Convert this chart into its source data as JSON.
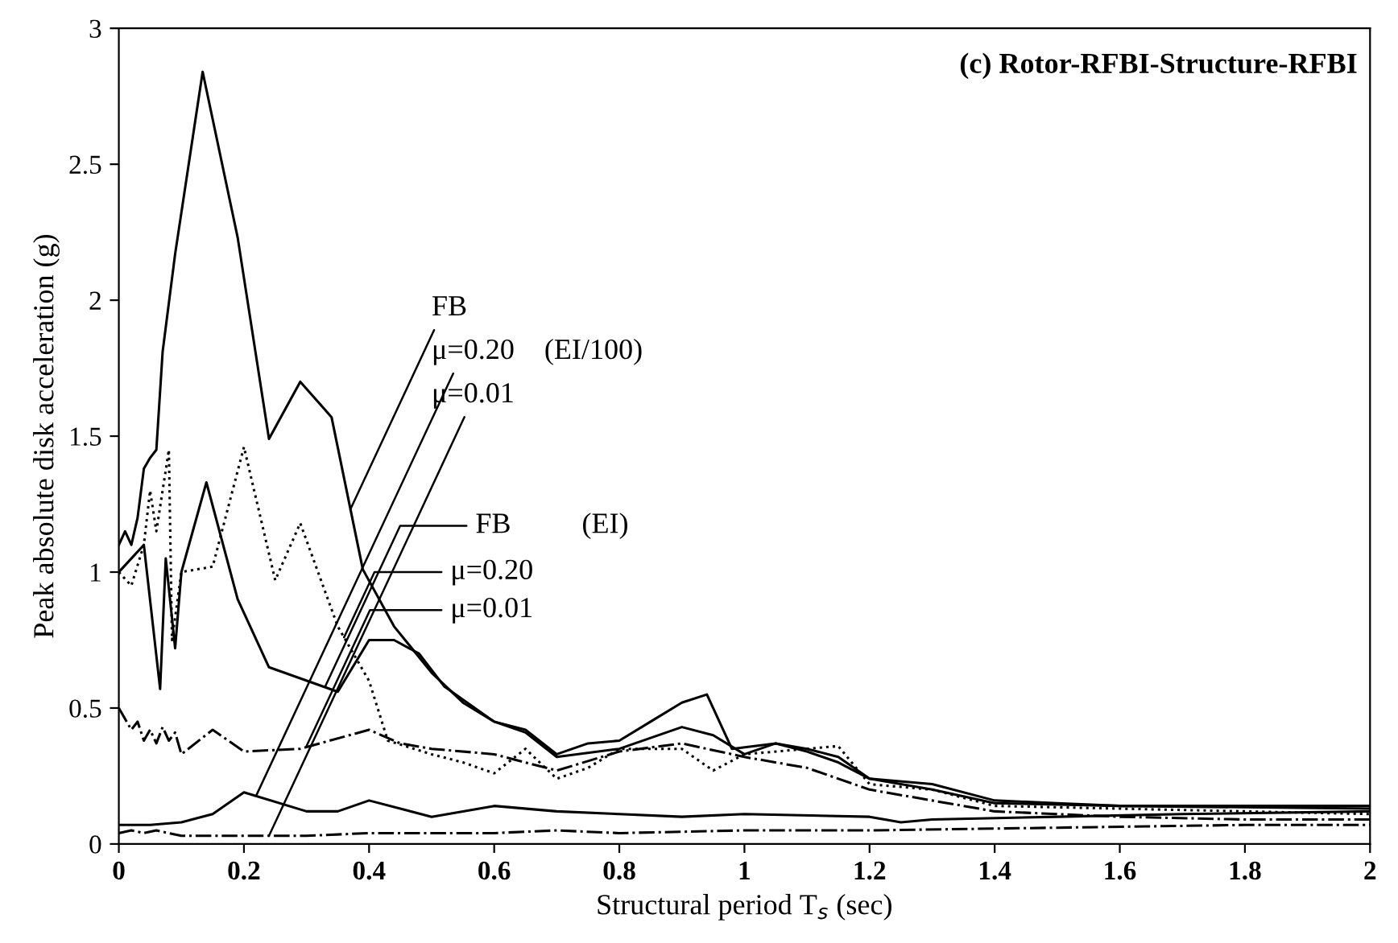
{
  "chart_data": {
    "type": "line",
    "title": "(c) Rotor-RFBI-Structure-RFBI",
    "xlabel": "Structural period T$_{s}$ (sec)",
    "ylabel": "Peak absolute disk acceleration (g)",
    "annotations": [
      {
        "text": "FB",
        "x": 0.37,
        "y": 1.23
      },
      {
        "text": "μ=0.20",
        "x": 0.22,
        "y": 0.18
      },
      {
        "text": "μ=0.01",
        "x": 0.24,
        "y": 0.03
      },
      "(EI/100)",
      {
        "text": "FB",
        "x": 0.33,
        "y": 0.58
      },
      {
        "text": "μ=0.20",
        "x": 0.36,
        "y": 0.76
      },
      {
        "text": "μ=0.01",
        "x": 0.3,
        "y": 0.36
      },
      "(EI)"
    ],
    "xlim": [
      0,
      2
    ],
    "ylim": [
      0,
      3
    ],
    "xticks": [
      0,
      0.2,
      0.4,
      0.6,
      0.8,
      1,
      1.2,
      1.4,
      1.6,
      1.8,
      2
    ],
    "yticks": [
      0,
      0.5,
      1,
      1.5,
      2,
      2.5,
      3
    ],
    "grid": false,
    "marker": "none",
    "series": [
      {
        "color": "#000000",
        "line_style": "solid",
        "x": [
          0,
          0.01,
          0.02,
          0.03,
          0.04,
          0.05,
          0.06,
          0.07,
          0.09,
          0.134,
          0.19,
          0.24,
          0.29,
          0.34,
          0.39,
          0.44,
          0.5,
          0.55,
          0.6,
          0.65,
          0.7,
          0.75,
          0.8,
          0.85,
          0.9,
          0.94,
          0.98,
          1.05,
          1.1,
          1.15,
          1.2,
          1.3,
          1.4,
          1.5,
          1.6,
          1.8,
          2.0
        ],
        "values": [
          1.1,
          1.15,
          1.1,
          1.2,
          1.38,
          1.42,
          1.45,
          1.81,
          2.17,
          2.84,
          2.23,
          1.49,
          1.7,
          1.57,
          1.01,
          0.8,
          0.63,
          0.52,
          0.45,
          0.42,
          0.33,
          0.37,
          0.38,
          0.45,
          0.52,
          0.55,
          0.35,
          0.37,
          0.35,
          0.32,
          0.24,
          0.22,
          0.16,
          0.15,
          0.14,
          0.14,
          0.14
        ]
      },
      {
        "color": "#000000",
        "line_style": "solid",
        "x": [
          0,
          0.05,
          0.1,
          0.15,
          0.2,
          0.3,
          0.35,
          0.4,
          0.5,
          0.6,
          0.7,
          0.8,
          0.9,
          1.0,
          1.2,
          1.25,
          1.3,
          1.5,
          1.7,
          2.0
        ],
        "values": [
          0.07,
          0.07,
          0.08,
          0.11,
          0.19,
          0.12,
          0.12,
          0.16,
          0.1,
          0.14,
          0.12,
          0.11,
          0.1,
          0.11,
          0.1,
          0.08,
          0.09,
          0.1,
          0.11,
          0.12
        ]
      },
      {
        "color": "#000000",
        "line_style": "dashdot",
        "x": [
          0,
          0.02,
          0.04,
          0.06,
          0.1,
          0.3,
          0.4,
          0.6,
          0.7,
          0.8,
          1.0,
          1.2,
          1.5,
          1.8,
          2.0
        ],
        "values": [
          0.04,
          0.05,
          0.04,
          0.05,
          0.03,
          0.03,
          0.04,
          0.04,
          0.05,
          0.04,
          0.05,
          0.05,
          0.06,
          0.07,
          0.07
        ]
      },
      {
        "color": "#000000",
        "line_style": "solid",
        "x": [
          0,
          0.02,
          0.04,
          0.066,
          0.075,
          0.09,
          0.1,
          0.14,
          0.19,
          0.24,
          0.35,
          0.4,
          0.44,
          0.48,
          0.52,
          0.6,
          0.65,
          0.7,
          0.8,
          0.9,
          0.95,
          1.0,
          1.05,
          1.1,
          1.15,
          1.2,
          1.3,
          1.4,
          1.6,
          2.0
        ],
        "values": [
          1.0,
          1.05,
          1.1,
          0.57,
          1.05,
          0.72,
          1.0,
          1.33,
          0.9,
          0.65,
          0.56,
          0.75,
          0.75,
          0.7,
          0.58,
          0.45,
          0.41,
          0.32,
          0.35,
          0.43,
          0.4,
          0.33,
          0.37,
          0.34,
          0.3,
          0.24,
          0.2,
          0.15,
          0.14,
          0.13
        ]
      },
      {
        "color": "#000000",
        "line_style": "dotted",
        "x": [
          0,
          0.02,
          0.04,
          0.05,
          0.06,
          0.08,
          0.085,
          0.1,
          0.15,
          0.2,
          0.25,
          0.29,
          0.35,
          0.4,
          0.43,
          0.5,
          0.55,
          0.6,
          0.65,
          0.7,
          0.75,
          0.8,
          0.9,
          0.95,
          1.0,
          1.1,
          1.15,
          1.2,
          1.3,
          1.4,
          2.0
        ],
        "values": [
          1.0,
          0.95,
          1.1,
          1.3,
          1.15,
          1.45,
          0.75,
          1.0,
          1.02,
          1.46,
          0.97,
          1.18,
          0.8,
          0.6,
          0.38,
          0.33,
          0.3,
          0.26,
          0.35,
          0.24,
          0.28,
          0.35,
          0.35,
          0.27,
          0.33,
          0.35,
          0.36,
          0.22,
          0.2,
          0.14,
          0.11
        ]
      },
      {
        "color": "#000000",
        "line_style": "dashdot",
        "x": [
          0,
          0.01,
          0.02,
          0.03,
          0.04,
          0.05,
          0.06,
          0.07,
          0.08,
          0.09,
          0.1,
          0.15,
          0.2,
          0.29,
          0.4,
          0.45,
          0.5,
          0.6,
          0.7,
          0.8,
          0.9,
          1.0,
          1.1,
          1.2,
          1.3,
          1.4,
          1.6,
          1.8,
          2.0
        ],
        "values": [
          0.5,
          0.46,
          0.42,
          0.45,
          0.38,
          0.42,
          0.37,
          0.43,
          0.38,
          0.41,
          0.33,
          0.42,
          0.34,
          0.35,
          0.42,
          0.37,
          0.35,
          0.33,
          0.27,
          0.34,
          0.37,
          0.32,
          0.28,
          0.2,
          0.16,
          0.12,
          0.1,
          0.09,
          0.09
        ]
      }
    ]
  }
}
